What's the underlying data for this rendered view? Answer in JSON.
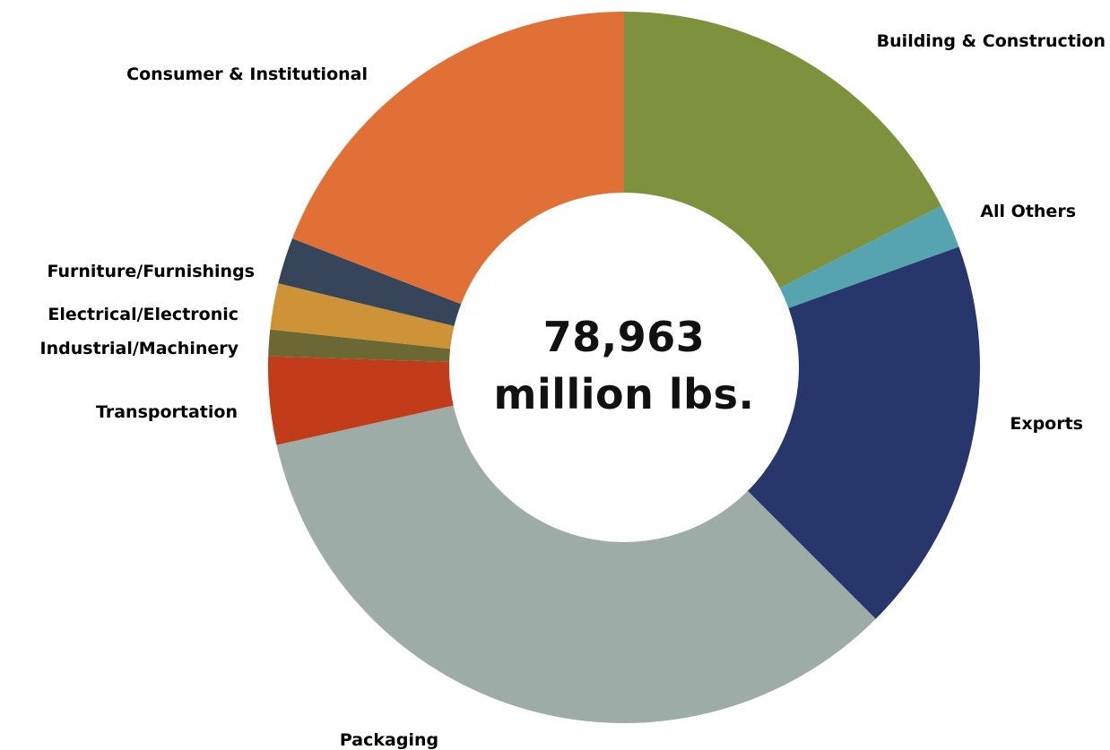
{
  "chart_data": {
    "type": "pie",
    "style": "donut",
    "center_label": {
      "total": "78,963",
      "unit": "million lbs."
    },
    "slices": [
      {
        "label": "Building & Construction",
        "percent": 17.5,
        "color": "#7E913D"
      },
      {
        "label": "All Others",
        "percent": 2.0,
        "color": "#55A4B0"
      },
      {
        "label": "Exports",
        "percent": 18.0,
        "color": "#27366B"
      },
      {
        "label": "Packaging",
        "percent": 34.0,
        "color": "#9DACA6"
      },
      {
        "label": "Transportation",
        "percent": 4.0,
        "color": "#C33C1A"
      },
      {
        "label": "Industrial/Machinery",
        "percent": 1.2,
        "color": "#6C6833"
      },
      {
        "label": "Electrical/Electronic",
        "percent": 2.1,
        "color": "#CD9336"
      },
      {
        "label": "Furniture/Furnishings",
        "percent": 2.1,
        "color": "#36455A"
      },
      {
        "label": "Consumer & Institutional",
        "percent": 19.1,
        "color": "#E07035"
      }
    ]
  }
}
